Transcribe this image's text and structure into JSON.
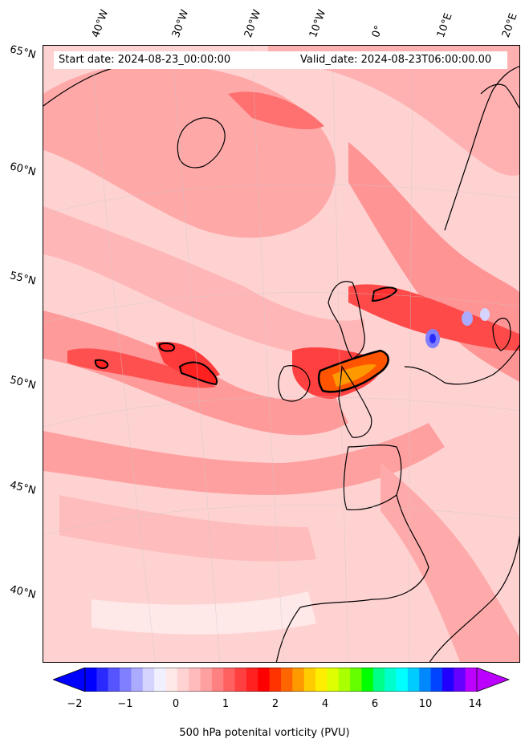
{
  "header": {
    "start_date": "Start date: 2024-08-23_00:00:00",
    "valid_date": "Valid_date: 2024-08-23T06:00:00.00"
  },
  "lon_labels": [
    "40°W",
    "30°W",
    "20°W",
    "10°W",
    "0°",
    "10°E",
    "20°E"
  ],
  "lat_labels": [
    "65°N",
    "60°N",
    "55°N",
    "50°N",
    "45°N",
    "40°N"
  ],
  "colorbar": {
    "label": "500 hPa potenital vorticity (PVU)",
    "ticks": [
      "−2",
      "−1",
      "0",
      "1",
      "2",
      "4",
      "6",
      "10",
      "14"
    ],
    "colors": [
      "#0000ff",
      "#2a2aff",
      "#5555ff",
      "#7f7fff",
      "#aaaaff",
      "#d4d4ff",
      "#f0f0ff",
      "#ffe8e8",
      "#ffd2d2",
      "#ffbbbb",
      "#ffa0a0",
      "#ff8080",
      "#ff6060",
      "#ff4040",
      "#ff2020",
      "#ff0000",
      "#ff3300",
      "#ff6600",
      "#ff9900",
      "#ffcc00",
      "#ffee00",
      "#ddff00",
      "#aaff00",
      "#66ff00",
      "#00ff00",
      "#00ff88",
      "#00ffcc",
      "#00ffff",
      "#00ccff",
      "#0088ff",
      "#0044ff",
      "#2200ff",
      "#6600ff",
      "#bb00ff"
    ]
  }
}
